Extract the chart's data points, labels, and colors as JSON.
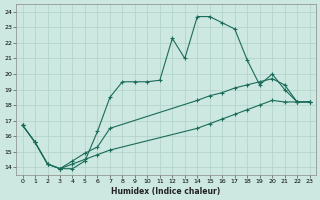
{
  "xlabel": "Humidex (Indice chaleur)",
  "xlim": [
    -0.5,
    23.5
  ],
  "ylim": [
    13.5,
    24.5
  ],
  "xticks": [
    0,
    1,
    2,
    3,
    4,
    5,
    6,
    7,
    8,
    9,
    10,
    11,
    12,
    13,
    14,
    15,
    16,
    17,
    18,
    19,
    20,
    21,
    22,
    23
  ],
  "yticks": [
    14,
    15,
    16,
    17,
    18,
    19,
    20,
    21,
    22,
    23,
    24
  ],
  "bg_color": "#cce8e0",
  "grid_color": "#b0d0c8",
  "line_color": "#1a6b5a",
  "line1_x": [
    0,
    1,
    2,
    3,
    4,
    5,
    6,
    7,
    8,
    9,
    10,
    11,
    12,
    13,
    14,
    15,
    16,
    17,
    18,
    19,
    20,
    21,
    22,
    23
  ],
  "line1_y": [
    16.7,
    15.6,
    14.2,
    13.9,
    13.9,
    14.4,
    16.3,
    18.5,
    19.5,
    19.5,
    19.5,
    19.6,
    22.3,
    21.0,
    23.7,
    23.7,
    23.3,
    22.9,
    20.9,
    19.3,
    20.0,
    19.0,
    18.2,
    18.2
  ],
  "line2_x": [
    0,
    1,
    2,
    3,
    4,
    5,
    6,
    7,
    14,
    15,
    16,
    17,
    18,
    19,
    20,
    21,
    22,
    23
  ],
  "line2_y": [
    16.7,
    15.6,
    14.2,
    13.9,
    14.4,
    14.9,
    15.3,
    16.5,
    18.3,
    18.6,
    18.8,
    19.1,
    19.3,
    19.5,
    19.7,
    19.3,
    18.2,
    18.2
  ],
  "line3_x": [
    0,
    1,
    2,
    3,
    4,
    5,
    6,
    7,
    14,
    15,
    16,
    17,
    18,
    19,
    20,
    21,
    22,
    23
  ],
  "line3_y": [
    16.7,
    15.6,
    14.2,
    13.9,
    14.2,
    14.5,
    14.8,
    15.1,
    16.5,
    16.8,
    17.1,
    17.4,
    17.7,
    18.0,
    18.3,
    18.2,
    18.2,
    18.2
  ]
}
